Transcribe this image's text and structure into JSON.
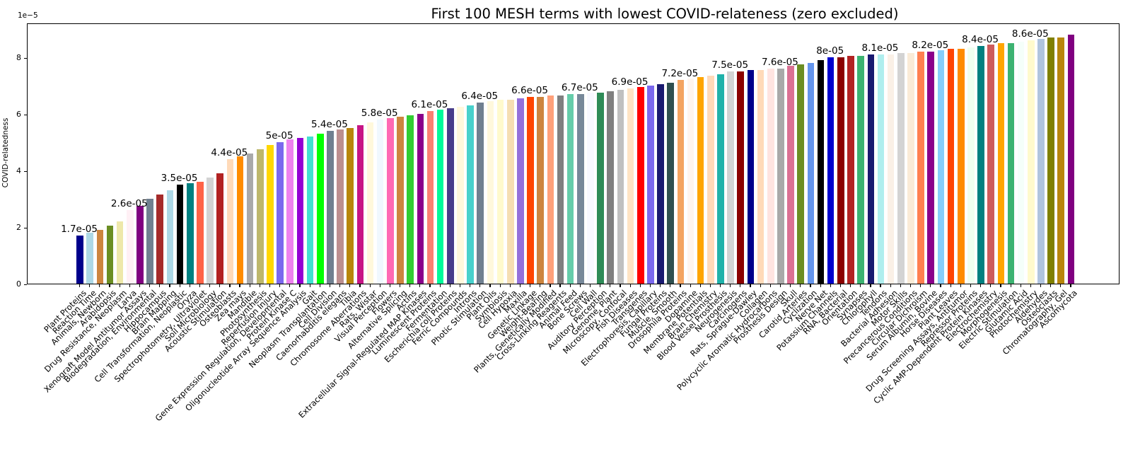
{
  "chart_data": {
    "type": "bar",
    "title": "First 100 MESH terms with lowest COVID-relateness (zero excluded)",
    "ylabel": "COVID-relatedness",
    "offset_text": "1e−5",
    "xlabel": "",
    "grid": false,
    "legend": null,
    "ylim_e5": [
      0,
      9.2
    ],
    "yticks_e5": [
      0,
      2,
      4,
      6,
      8
    ],
    "categories": [
      "Plant Proteins",
      "Reaction Time",
      "Animals, Newborn",
      "Arabidopsis",
      "Drug Resistance, Neoplasm",
      "Larva",
      "Xenograft Model Antitumor Assays",
      "Biodegradation, Environmental",
      "Hippocampus",
      "Brain Mapping",
      "Cell Transformation, Neoplastic",
      "Oryza",
      "Spectrophotometry, Ultraviolet",
      "Soil Microbiology",
      "Acoustic Stimulation",
      "Osteoblasts",
      "Zea mays",
      "Mandible",
      "Photosynthesis",
      "Reperfusion Injury",
      "Gene Expression Regulation, Developmental",
      "Protein Kinase C",
      "Oligonucleotide Array Sequence Analysis",
      "Gait",
      "Neoplasm Transplantation",
      "Cell Division",
      "Caenorhabditis elegans",
      "Tibia",
      "Chromosome Aberrations",
      "Rats, Wistar",
      "Visual Perception",
      "Flowers",
      "Alternative Splicing",
      "Actins",
      "Extracellular Signal-Regulated MAP Kinases",
      "Luminescent Proteins",
      "Fermentation",
      "Escherichia coli Proteins",
      "Ferric Compounds",
      "Introns",
      "Photic Stimulation",
      "Plant Oils",
      "Symbiosis",
      "Cell Hypoxia",
      "Maxilla",
      "Genetic Linkage",
      "Weight-Bearing",
      "Plants, Genetically Modified",
      "Cross-Linking Reagents",
      "Animal Feed",
      "Bone Screws",
      "Cell Wall",
      "Auditory Perception",
      "Genome, Plant",
      "Microscopy, Confocal",
      "Fish Diseases",
      "Transgenes",
      "Electrophoresis, Capillary",
      "Fungal Proteins",
      "Muscle, Smooth",
      "Drosophila Proteins",
      "Dopamine",
      "Membrane Potentials",
      "Brain Chemistry",
      "Blood Vessel Prosthesis",
      "Neurogenesis",
      "Carcinogens",
      "Rats, Sprague-Dawley",
      "Collagen",
      "Polycyclic Aromatic Hydrocarbons",
      "Prosthesis Design",
      "Skull",
      "Carotid Arteries",
      "Cyclization",
      "Nerve Net",
      "Potassium Channels",
      "RNA, Bacterial",
      "Orientation",
      "Synapses",
      "Chlorophyll",
      "Tendons",
      "Bacterial Adhesion",
      "Motor Skills",
      "Precancerous Conditions",
      "Circular Dichroism",
      "Serum Albumin, Bovine",
      "Horse Diseases",
      "Plant Leaves",
      "Drug Screening Assays, Antitumor",
      "Repressor Proteins",
      "Cyclic AMP-Dependent Protein Kinases",
      "Electrochemistry",
      "Morphogenesis",
      "Electric Stimulation",
      "Glutamic Acid",
      "Photochemistry",
      "Aldehydes",
      "Osteoclasts",
      "Chromatography, Gel",
      "Ascomycota"
    ],
    "values_e5": [
      1.7,
      1.8,
      1.9,
      2.05,
      2.2,
      2.6,
      2.75,
      3.0,
      3.15,
      3.3,
      3.5,
      3.55,
      3.6,
      3.75,
      3.9,
      4.4,
      4.5,
      4.6,
      4.75,
      4.9,
      5.0,
      5.1,
      5.15,
      5.2,
      5.3,
      5.4,
      5.45,
      5.5,
      5.6,
      5.7,
      5.8,
      5.85,
      5.9,
      5.95,
      6.0,
      6.1,
      6.15,
      6.2,
      6.25,
      6.3,
      6.4,
      6.45,
      6.5,
      6.5,
      6.55,
      6.6,
      6.6,
      6.65,
      6.65,
      6.7,
      6.7,
      6.75,
      6.75,
      6.8,
      6.85,
      6.9,
      6.95,
      7.0,
      7.05,
      7.1,
      7.2,
      7.25,
      7.3,
      7.35,
      7.4,
      7.5,
      7.5,
      7.55,
      7.55,
      7.6,
      7.6,
      7.7,
      7.75,
      7.8,
      7.9,
      8.0,
      8.0,
      8.05,
      8.05,
      8.1,
      8.1,
      8.1,
      8.15,
      8.15,
      8.2,
      8.2,
      8.25,
      8.3,
      8.3,
      8.35,
      8.4,
      8.45,
      8.5,
      8.5,
      8.55,
      8.6,
      8.65,
      8.7,
      8.7,
      8.8
    ],
    "bar_colors": [
      "#00008b",
      "#add8e6",
      "#cd853f",
      "#6b8e23",
      "#eee8aa",
      "#fff0f5",
      "#800080",
      "#708090",
      "#a52a2a",
      "#add8e6",
      "#000000",
      "#008080",
      "#ff6347",
      "#d3d3d3",
      "#b22222",
      "#ffdab9",
      "#ff8c00",
      "#a9a9a9",
      "#bdb76b",
      "#ffd700",
      "#7b68ee",
      "#ee82ee",
      "#9400d3",
      "#40e0d0",
      "#00ff00",
      "#708090",
      "#bc8f8f",
      "#b8860b",
      "#c71585",
      "#fff8dc",
      "#f0f8ff",
      "#ff69b4",
      "#cd853f",
      "#32cd32",
      "#8b008b",
      "#fa8072",
      "#00fa9a",
      "#483d8b",
      "#fff8dc",
      "#48d1cc",
      "#708090",
      "#fff8dc",
      "#fffacd",
      "#f5deb3",
      "#9370db",
      "#ff4500",
      "#cd853f",
      "#ffa07a",
      "#808080",
      "#66cdaa",
      "#778899",
      "#f8f8ff",
      "#2e8b57",
      "#808080",
      "#c0c0c0",
      "#ffe4c4",
      "#ff0000",
      "#7b68ee",
      "#191970",
      "#2f4f4f",
      "#f4a460",
      "#fff5ee",
      "#ffa500",
      "#ffdab9",
      "#20b2aa",
      "#d3d3d3",
      "#8b0000",
      "#00008b",
      "#ffdab9",
      "#ffe4e1",
      "#a9a9a9",
      "#db7093",
      "#6b8e23",
      "#6495ed",
      "#000000",
      "#0000cd",
      "#8b0000",
      "#b22222",
      "#3cb371",
      "#191970",
      "#afeeee",
      "#faf0e6",
      "#d3d3d3",
      "#faebd7",
      "#ff7f50",
      "#8b008b",
      "#87cefa",
      "#ff4500",
      "#ff8c00",
      "#f0fff0",
      "#008080",
      "#cd5c5c",
      "#ffa500",
      "#3cb371",
      "#f5fffa",
      "#fffacd",
      "#b0c4de",
      "#808000",
      "#b8860b",
      "#800080"
    ],
    "annotations": [
      {
        "index": 0,
        "text": "1.7e-05"
      },
      {
        "index": 5,
        "text": "2.6e-05"
      },
      {
        "index": 10,
        "text": "3.5e-05"
      },
      {
        "index": 15,
        "text": "4.4e-05"
      },
      {
        "index": 20,
        "text": "5e-05"
      },
      {
        "index": 25,
        "text": "5.4e-05"
      },
      {
        "index": 30,
        "text": "5.8e-05"
      },
      {
        "index": 35,
        "text": "6.1e-05"
      },
      {
        "index": 40,
        "text": "6.4e-05"
      },
      {
        "index": 45,
        "text": "6.6e-05"
      },
      {
        "index": 50,
        "text": "6.7e-05"
      },
      {
        "index": 55,
        "text": "6.9e-05"
      },
      {
        "index": 60,
        "text": "7.2e-05"
      },
      {
        "index": 65,
        "text": "7.5e-05"
      },
      {
        "index": 70,
        "text": "7.6e-05"
      },
      {
        "index": 75,
        "text": "8e-05"
      },
      {
        "index": 80,
        "text": "8.1e-05"
      },
      {
        "index": 85,
        "text": "8.2e-05"
      },
      {
        "index": 90,
        "text": "8.4e-05"
      },
      {
        "index": 95,
        "text": "8.6e-05"
      }
    ]
  }
}
